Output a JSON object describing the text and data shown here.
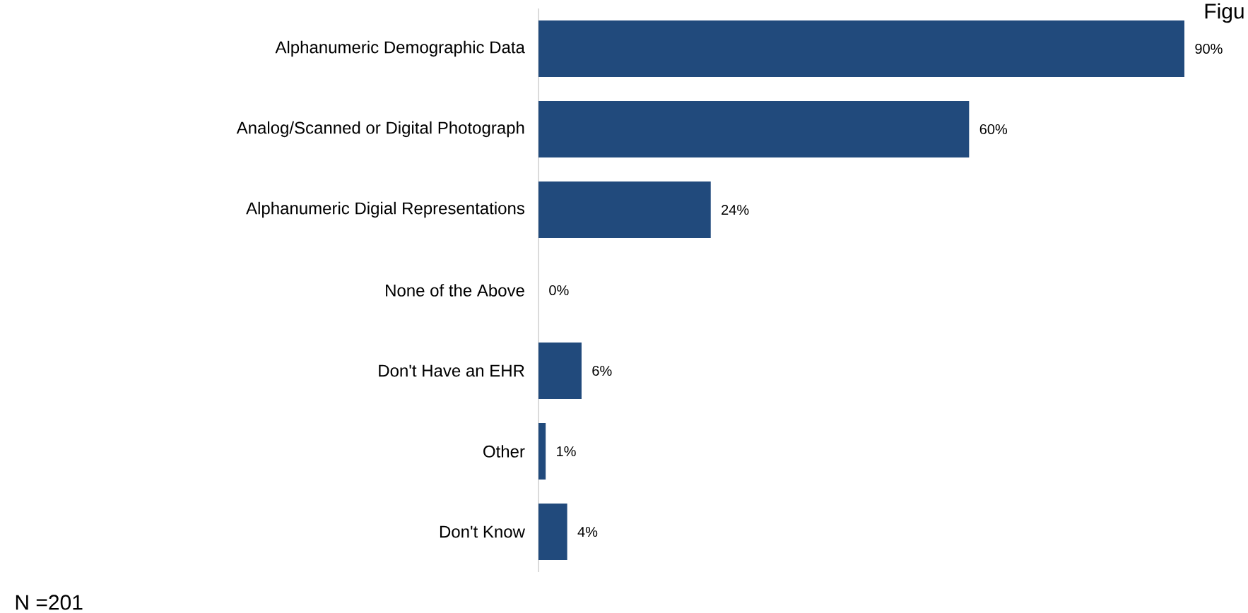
{
  "chart_data": {
    "type": "bar",
    "orientation": "horizontal",
    "categories": [
      "Alphanumeric Demographic Data",
      "Analog/Scanned or Digital Photograph",
      "Alphanumeric Digial Representations",
      "None of the Above",
      "Don't Have an EHR",
      "Other",
      "Don't Know"
    ],
    "values": [
      90,
      60,
      24,
      0,
      6,
      1,
      4
    ],
    "value_labels": [
      "90%",
      "60%",
      "24%",
      "0%",
      "6%",
      "1%",
      "4%"
    ],
    "color": "#214a7c",
    "annotations": [
      "N =201",
      "Figu"
    ]
  }
}
